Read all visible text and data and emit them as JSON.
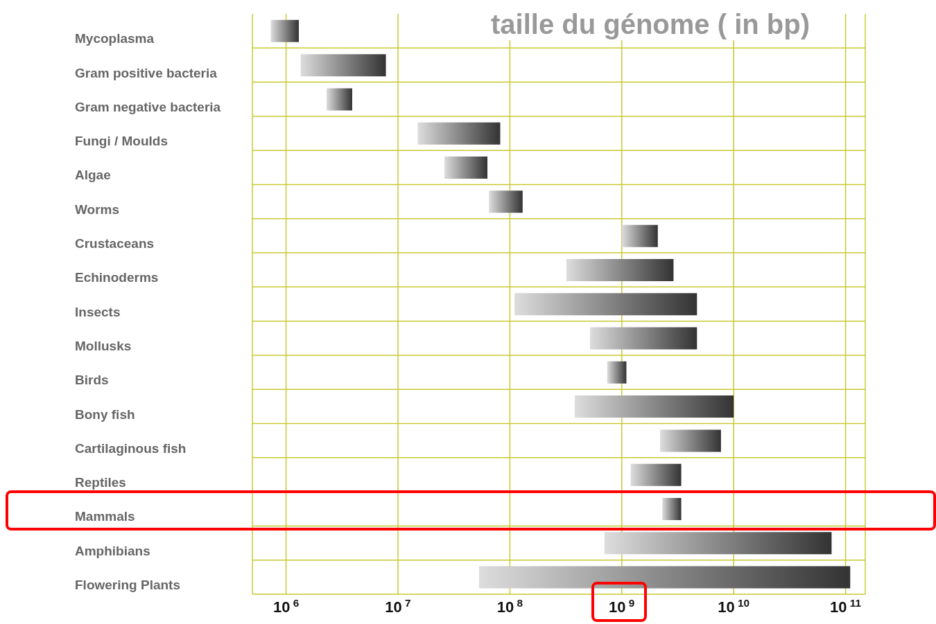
{
  "chart_data": {
    "type": "bar",
    "orientation": "horizontal",
    "title": "taille du génome ( in bp)",
    "categories": [
      "Mycoplasma",
      "Gram positive bacteria",
      "Gram negative bacteria",
      "Fungi / Moulds",
      "Algae",
      "Worms",
      "Crustaceans",
      "Echinoderms",
      "Insects",
      "Mollusks",
      "Birds",
      "Bony fish",
      "Cartilaginous fish",
      "Reptiles",
      "Mammals",
      "Amphibians",
      "Flowering Plants"
    ],
    "base": [
      730000,
      1350000,
      2300000,
      15000000,
      26000000,
      65000000,
      1000000000,
      320000000,
      110000000,
      520000000,
      740000000,
      380000000,
      2200000000,
      1200000000,
      2300000000,
      700000000,
      53000000
    ],
    "values": [
      570000,
      6450000,
      1600000,
      67000000,
      37000000,
      65000000,
      1100000000,
      2580000000,
      4590000000,
      4180000000,
      360000000,
      9620000000,
      5500000000,
      2200000000,
      1100000000,
      74300000000,
      109947000000
    ],
    "color": "#333333",
    "log": "x",
    "xlim": [
      500000,
      150000000000
    ],
    "xticks": [
      {
        "value": 1000000,
        "label": "10$^{6}$"
      },
      {
        "value": 10000000,
        "label": "10$^{7}$"
      },
      {
        "value": 100000000,
        "label": "10$^{8}$"
      },
      {
        "value": 1000000000,
        "label": "10$^{9}$"
      },
      {
        "value": 10000000000,
        "label": "10$^{10}$"
      },
      {
        "value": 100000000000,
        "label": "10$^{11}$"
      }
    ],
    "grid": true
  }
}
